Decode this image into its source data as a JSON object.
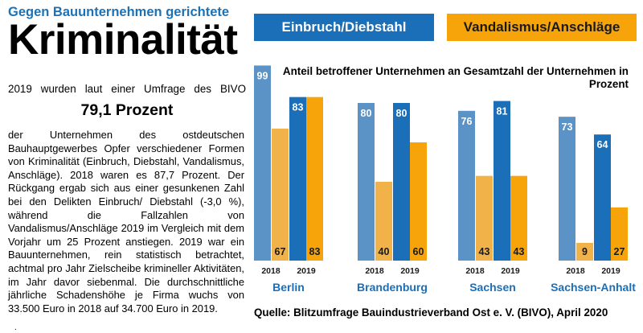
{
  "article": {
    "kicker": "Gegen Bauunternehmen gerichtete",
    "headline": "Kriminalität",
    "intro": "2019 wurden laut  einer Umfrage des BIVO",
    "highlight": "79,1 Prozent",
    "body": "der Unternehmen des ostdeutschen Bauhauptgewerbes Opfer verschiedener Formen von Kriminalität (Einbruch, Diebstahl, Vandalismus, Anschläge). 2018 waren es 87,7 Prozent. Der Rückgang ergab sich aus einer gesunkenen Zahl bei den Delikten Einbruch/ Diebstahl (-3,0 %), während die Fallzahlen von Vandalismus/Anschläge 2019 im Vergleich mit dem Vorjahr um 25 Prozent anstiegen. 2019 war ein Bauunternehmen, rein statistisch betrachtet, achtmal pro Jahr Zielscheibe krimineller Aktivitäten, im Jahr davor siebenmal. Die durchschnittliche jährliche Schadenshöhe je Firma wuchs von 33.500 Euro in 2018 auf 34.700 Euro in 2019.",
    "end_mark": "."
  },
  "chart_data": {
    "type": "bar",
    "title": "Anteil betroffener Unternehmen an Gesamtzahl  der Unternehmen in Prozent",
    "legend": [
      "Einbruch/Diebstahl",
      "Vandalismus/Anschläge"
    ],
    "legend_placement": "top",
    "categories": [
      "Berlin",
      "Brandenburg",
      "Sachsen",
      "Sachsen-Anhalt"
    ],
    "years": [
      "2018",
      "2019"
    ],
    "ylim": [
      0,
      100
    ],
    "grid": false,
    "series": [
      {
        "name": "Einbruch/Diebstahl",
        "year": "2018",
        "values": [
          99,
          80,
          76,
          73
        ]
      },
      {
        "name": "Vandalismus/Anschläge",
        "year": "2018",
        "values": [
          67,
          40,
          43,
          9
        ]
      },
      {
        "name": "Einbruch/Diebstahl",
        "year": "2019",
        "values": [
          83,
          80,
          81,
          64
        ]
      },
      {
        "name": "Vandalismus/Anschläge",
        "year": "2019",
        "values": [
          83,
          60,
          43,
          27
        ]
      }
    ],
    "colors": {
      "blue_2018": "#5b93c6",
      "blue_2019": "#1a6fb8",
      "orange_2018": "#f2b24a",
      "orange_2019": "#f7a40a",
      "category_label": "#1a6fb8"
    },
    "source": "Quelle: Blitzumfrage Bauindustrieverband Ost e. V. (BIVO), April 2020"
  }
}
